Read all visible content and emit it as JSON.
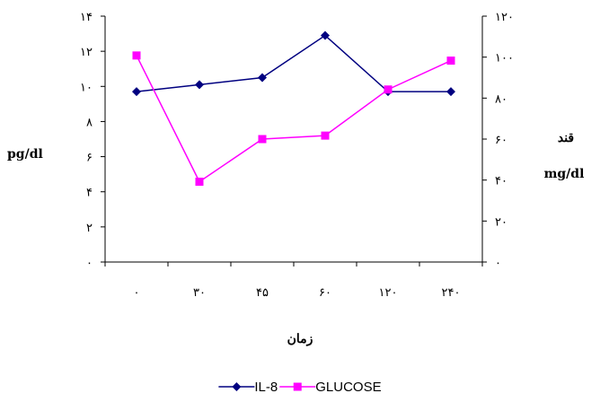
{
  "chart_data": {
    "type": "line",
    "categories": [
      "۰",
      "۳۰",
      "۴۵",
      "۶۰",
      "۱۲۰",
      "۲۴۰"
    ],
    "series": [
      {
        "name": "IL-8",
        "axis": "left",
        "color": "#000080",
        "marker": "diamond",
        "values": [
          9.7,
          10.1,
          10.5,
          12.9,
          9.7,
          9.7
        ]
      },
      {
        "name": "GLUCOSE",
        "axis": "right",
        "color": "#ff00ff",
        "marker": "square",
        "values": [
          100.8,
          39.2,
          60,
          61.7,
          84.2,
          98.3
        ]
      }
    ],
    "y_left": {
      "min": 0,
      "max": 14,
      "step": 2,
      "tick_labels": [
        "۰",
        "۲",
        "۴",
        "۶",
        "۸",
        "۱۰",
        "۱۲",
        "۱۴"
      ],
      "label": "pg/dl"
    },
    "y_right": {
      "min": 0,
      "max": 120,
      "step": 20,
      "tick_labels": [
        "۰",
        "۲۰",
        "۴۰",
        "۶۰",
        "۸۰",
        "۱۰۰",
        "۱۲۰"
      ],
      "label_line1": "قند",
      "label_line2": "mg/dl"
    },
    "xlabel": "زمان",
    "grid": false,
    "legend_position": "bottom"
  }
}
